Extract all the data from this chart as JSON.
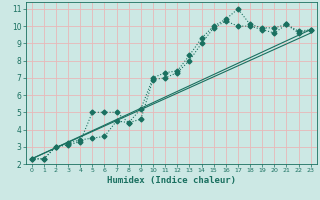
{
  "title": "",
  "xlabel": "Humidex (Indice chaleur)",
  "bg_color": "#cce8e4",
  "grid_color": "#e8b8b8",
  "line_color": "#1a7060",
  "xlim": [
    -0.5,
    23.5
  ],
  "ylim": [
    2,
    11.4
  ],
  "xticks": [
    0,
    1,
    2,
    3,
    4,
    5,
    6,
    7,
    8,
    9,
    10,
    11,
    12,
    13,
    14,
    15,
    16,
    17,
    18,
    19,
    20,
    21,
    22,
    23
  ],
  "yticks": [
    2,
    3,
    4,
    5,
    6,
    7,
    8,
    9,
    10,
    11
  ],
  "line1_x": [
    0,
    1,
    2,
    3,
    4,
    5,
    6,
    7,
    8,
    9,
    10,
    11,
    12,
    13,
    14,
    15,
    16,
    17,
    18,
    19,
    20,
    21,
    22,
    23
  ],
  "line1_y": [
    2.3,
    2.3,
    3.0,
    3.1,
    3.3,
    5.0,
    5.0,
    5.0,
    4.4,
    5.2,
    7.0,
    7.3,
    7.4,
    8.3,
    9.3,
    10.0,
    10.4,
    11.0,
    10.1,
    9.9,
    9.9,
    10.1,
    9.6,
    9.8
  ],
  "line2_x": [
    0,
    1,
    2,
    3,
    4,
    5,
    6,
    7,
    8,
    9,
    10,
    11,
    12,
    13,
    14,
    15,
    16,
    17,
    18,
    19,
    20,
    21,
    22,
    23
  ],
  "line2_y": [
    2.3,
    2.3,
    3.0,
    3.2,
    3.4,
    3.5,
    3.6,
    4.5,
    4.4,
    4.6,
    6.9,
    7.0,
    7.3,
    8.0,
    9.0,
    9.9,
    10.3,
    10.0,
    10.0,
    9.8,
    9.6,
    10.1,
    9.7,
    9.8
  ],
  "line3_x": [
    0,
    23
  ],
  "line3_y": [
    2.3,
    9.8
  ],
  "line4_x": [
    0,
    23
  ],
  "line4_y": [
    2.3,
    9.6
  ]
}
